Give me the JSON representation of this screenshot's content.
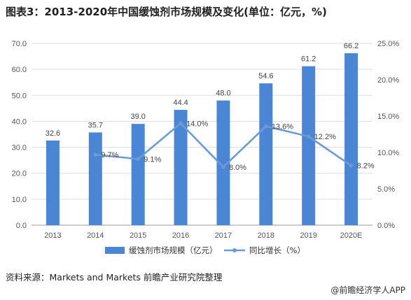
{
  "title": "图表3：2013-2020年中国缓蚀剂市场规模及变化(单位：亿元，%)",
  "source": "资料来源：Markets and Markets 前瞻产业研究院整理",
  "credit": "@前瞻经济学人APP",
  "colors": {
    "bar": "#4a86d4",
    "line": "#6b9bd6",
    "grid": "#dddddd",
    "axis": "#999999"
  },
  "chart_data": {
    "type": "bar",
    "categories": [
      "2013",
      "2014",
      "2015",
      "2016",
      "2017",
      "2018",
      "2019",
      "2020E"
    ],
    "series": [
      {
        "name": "缓蚀剂市场规模（亿元）",
        "type": "bar",
        "axis": "left",
        "values": [
          32.6,
          35.7,
          39.0,
          44.4,
          48.0,
          54.6,
          61.2,
          66.2
        ],
        "labels": [
          "32.6",
          "35.7",
          "39.0",
          "44.4",
          "48.0",
          "54.6",
          "61.2",
          "66.2"
        ]
      },
      {
        "name": "同比增长（%）",
        "type": "line",
        "axis": "right",
        "values": [
          null,
          9.7,
          9.1,
          14.0,
          8.0,
          13.6,
          12.2,
          8.2
        ],
        "labels": [
          "",
          "9.7%",
          "9.1%",
          "14.0%",
          "8.0%",
          "13.6%",
          "12.2%",
          "8.2%"
        ]
      }
    ],
    "ylim_left": [
      0,
      70
    ],
    "ylim_right": [
      0,
      25
    ],
    "yticks_left": [
      "0.0",
      "10.0",
      "20.0",
      "30.0",
      "40.0",
      "50.0",
      "60.0",
      "70.0"
    ],
    "yticks_right": [
      "0.0%",
      "5.0%",
      "10.0%",
      "15.0%",
      "20.0%",
      "25.0%"
    ],
    "grid": true,
    "legend": "bottom"
  }
}
